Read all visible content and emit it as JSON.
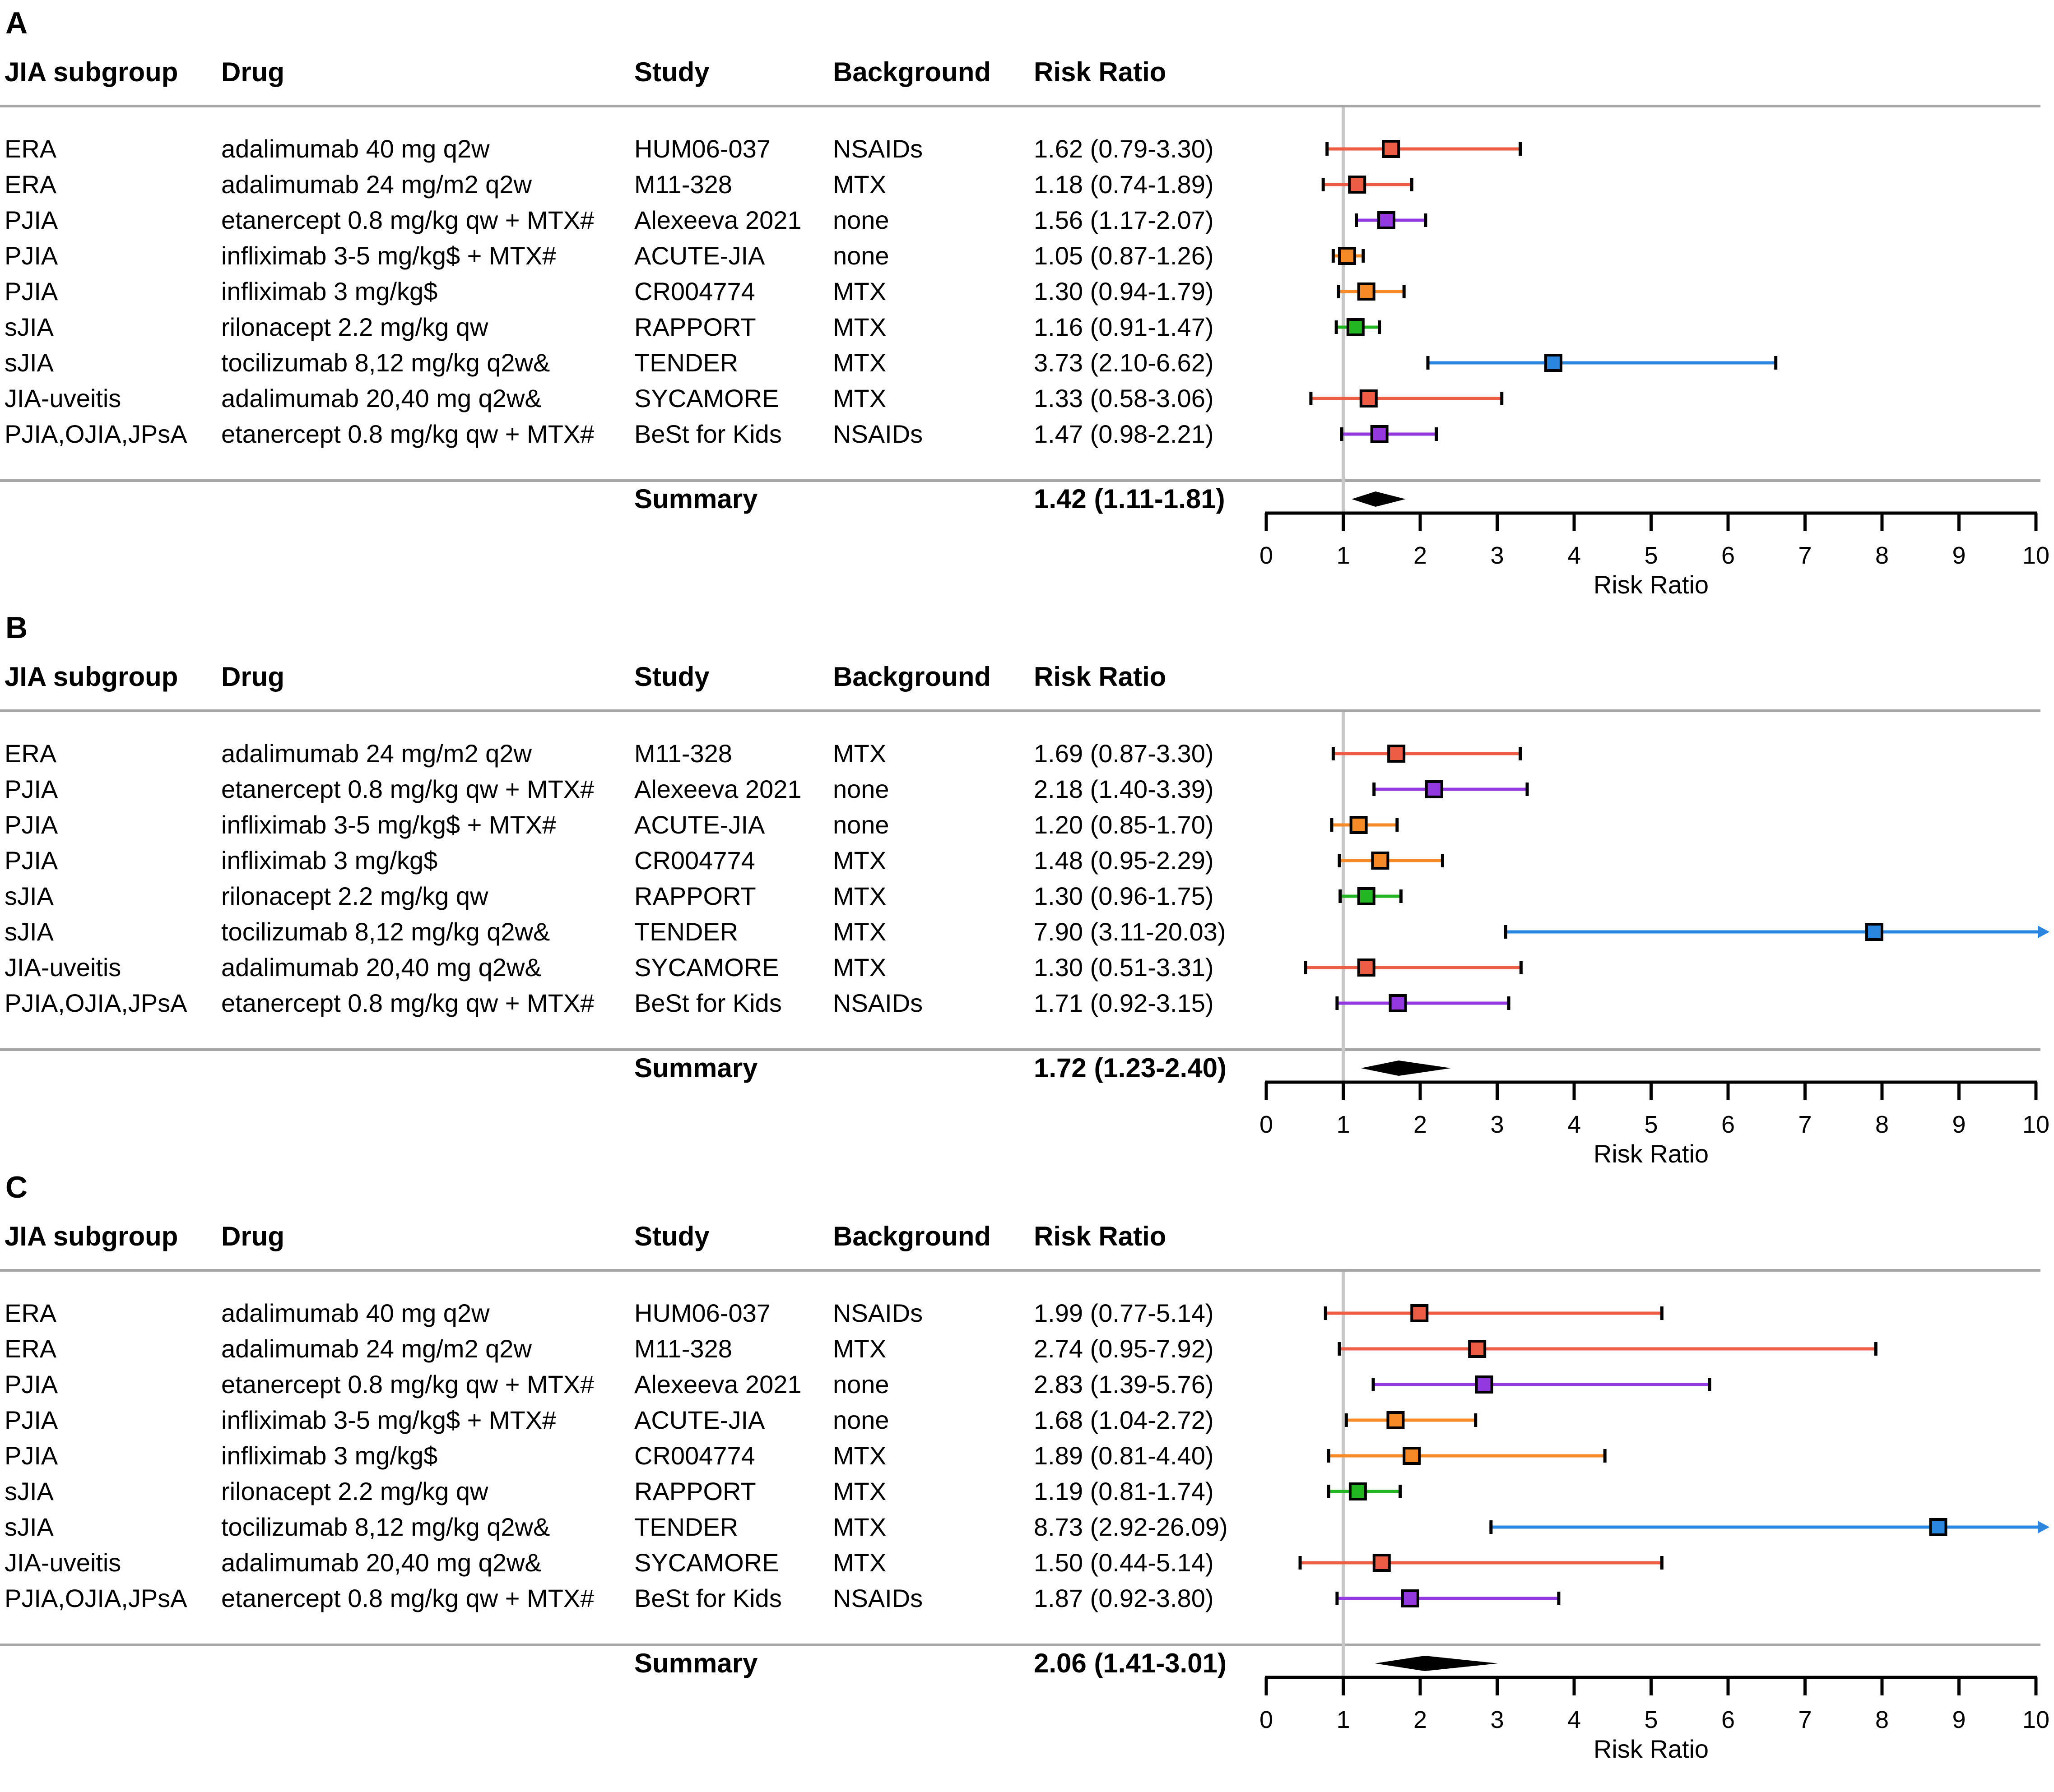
{
  "columns": {
    "subgroup": "JIA subgroup",
    "drug": "Drug",
    "study": "Study",
    "background": "Background",
    "rr": "Risk Ratio"
  },
  "summary_label": "Summary",
  "series_colors": {
    "adalimumab": "#ed5d45",
    "etanercept": "#9438e0",
    "infliximab": "#f58a27",
    "rilonacept": "#22b722",
    "tocilizumab": "#2b86e0"
  },
  "chart_data": [
    {
      "panel": "A",
      "type": "forest",
      "xlabel": "Risk Ratio",
      "xlim": [
        0,
        10
      ],
      "xticks": [
        "0",
        "1",
        "2",
        "3",
        "4",
        "5",
        "6",
        "7",
        "8",
        "9",
        "10"
      ],
      "reference_line": 1,
      "summary": {
        "label": "Summary",
        "text": "1.42 (1.11-1.81)",
        "estimate": 1.42,
        "lower": 1.11,
        "upper": 1.81
      },
      "rows": [
        {
          "subgroup": "ERA",
          "drug": "adalimumab 40 mg q2w",
          "study": "HUM06-037",
          "background": "NSAIDs",
          "rr_text": "1.62 (0.79-3.30)",
          "estimate": 1.62,
          "lower": 0.79,
          "upper": 3.3,
          "series": "adalimumab"
        },
        {
          "subgroup": "ERA",
          "drug": "adalimumab 24 mg/m2 q2w",
          "study": "M11-328",
          "background": "MTX",
          "rr_text": "1.18 (0.74-1.89)",
          "estimate": 1.18,
          "lower": 0.74,
          "upper": 1.89,
          "series": "adalimumab"
        },
        {
          "subgroup": "PJIA",
          "drug": "etanercept 0.8 mg/kg qw + MTX#",
          "study": "Alexeeva 2021",
          "background": "none",
          "rr_text": "1.56 (1.17-2.07)",
          "estimate": 1.56,
          "lower": 1.17,
          "upper": 2.07,
          "series": "etanercept"
        },
        {
          "subgroup": "PJIA",
          "drug": "infliximab 3-5 mg/kg$ + MTX#",
          "study": "ACUTE-JIA",
          "background": "none",
          "rr_text": "1.05 (0.87-1.26)",
          "estimate": 1.05,
          "lower": 0.87,
          "upper": 1.26,
          "series": "infliximab"
        },
        {
          "subgroup": "PJIA",
          "drug": "infliximab 3 mg/kg$",
          "study": "CR004774",
          "background": "MTX",
          "rr_text": "1.30 (0.94-1.79)",
          "estimate": 1.3,
          "lower": 0.94,
          "upper": 1.79,
          "series": "infliximab"
        },
        {
          "subgroup": "sJIA",
          "drug": "rilonacept 2.2 mg/kg qw",
          "study": "RAPPORT",
          "background": "MTX",
          "rr_text": "1.16 (0.91-1.47)",
          "estimate": 1.16,
          "lower": 0.91,
          "upper": 1.47,
          "series": "rilonacept"
        },
        {
          "subgroup": "sJIA",
          "drug": "tocilizumab 8,12 mg/kg q2w&",
          "study": "TENDER",
          "background": "MTX",
          "rr_text": "3.73 (2.10-6.62)",
          "estimate": 3.73,
          "lower": 2.1,
          "upper": 6.62,
          "series": "tocilizumab"
        },
        {
          "subgroup": "JIA-uveitis",
          "drug": "adalimumab 20,40 mg q2w&",
          "study": "SYCAMORE",
          "background": "MTX",
          "rr_text": "1.33 (0.58-3.06)",
          "estimate": 1.33,
          "lower": 0.58,
          "upper": 3.06,
          "series": "adalimumab"
        },
        {
          "subgroup": "PJIA,OJIA,JPsA",
          "drug": "etanercept 0.8 mg/kg qw + MTX#",
          "study": "BeSt for Kids",
          "background": "NSAIDs",
          "rr_text": "1.47 (0.98-2.21)",
          "estimate": 1.47,
          "lower": 0.98,
          "upper": 2.21,
          "series": "etanercept"
        }
      ]
    },
    {
      "panel": "B",
      "type": "forest",
      "xlabel": "Risk Ratio",
      "xlim": [
        0,
        10
      ],
      "xticks": [
        "0",
        "1",
        "2",
        "3",
        "4",
        "5",
        "6",
        "7",
        "8",
        "9",
        "10"
      ],
      "reference_line": 1,
      "summary": {
        "label": "Summary",
        "text": "1.72 (1.23-2.40)",
        "estimate": 1.72,
        "lower": 1.23,
        "upper": 2.4
      },
      "rows": [
        {
          "subgroup": "ERA",
          "drug": "adalimumab 24 mg/m2 q2w",
          "study": "M11-328",
          "background": "MTX",
          "rr_text": "1.69 (0.87-3.30)",
          "estimate": 1.69,
          "lower": 0.87,
          "upper": 3.3,
          "series": "adalimumab"
        },
        {
          "subgroup": "PJIA",
          "drug": "etanercept 0.8 mg/kg qw + MTX#",
          "study": "Alexeeva 2021",
          "background": "none",
          "rr_text": "2.18 (1.40-3.39)",
          "estimate": 2.18,
          "lower": 1.4,
          "upper": 3.39,
          "series": "etanercept"
        },
        {
          "subgroup": "PJIA",
          "drug": "infliximab 3-5 mg/kg$ + MTX#",
          "study": "ACUTE-JIA",
          "background": "none",
          "rr_text": "1.20 (0.85-1.70)",
          "estimate": 1.2,
          "lower": 0.85,
          "upper": 1.7,
          "series": "infliximab"
        },
        {
          "subgroup": "PJIA",
          "drug": "infliximab 3 mg/kg$",
          "study": "CR004774",
          "background": "MTX",
          "rr_text": "1.48 (0.95-2.29)",
          "estimate": 1.48,
          "lower": 0.95,
          "upper": 2.29,
          "series": "infliximab"
        },
        {
          "subgroup": "sJIA",
          "drug": "rilonacept 2.2 mg/kg qw",
          "study": "RAPPORT",
          "background": "MTX",
          "rr_text": "1.30 (0.96-1.75)",
          "estimate": 1.3,
          "lower": 0.96,
          "upper": 1.75,
          "series": "rilonacept"
        },
        {
          "subgroup": "sJIA",
          "drug": "tocilizumab 8,12 mg/kg q2w&",
          "study": "TENDER",
          "background": "MTX",
          "rr_text": "7.90 (3.11-20.03)",
          "estimate": 7.9,
          "lower": 3.11,
          "upper": 20.03,
          "series": "tocilizumab"
        },
        {
          "subgroup": "JIA-uveitis",
          "drug": "adalimumab 20,40 mg q2w&",
          "study": "SYCAMORE",
          "background": "MTX",
          "rr_text": "1.30 (0.51-3.31)",
          "estimate": 1.3,
          "lower": 0.51,
          "upper": 3.31,
          "series": "adalimumab"
        },
        {
          "subgroup": "PJIA,OJIA,JPsA",
          "drug": "etanercept 0.8 mg/kg qw + MTX#",
          "study": "BeSt for Kids",
          "background": "NSAIDs",
          "rr_text": "1.71 (0.92-3.15)",
          "estimate": 1.71,
          "lower": 0.92,
          "upper": 3.15,
          "series": "etanercept"
        }
      ]
    },
    {
      "panel": "C",
      "type": "forest",
      "xlabel": "Risk Ratio",
      "xlim": [
        0,
        10
      ],
      "xticks": [
        "0",
        "1",
        "2",
        "3",
        "4",
        "5",
        "6",
        "7",
        "8",
        "9",
        "10"
      ],
      "reference_line": 1,
      "summary": {
        "label": "Summary",
        "text": "2.06 (1.41-3.01)",
        "estimate": 2.06,
        "lower": 1.41,
        "upper": 3.01
      },
      "rows": [
        {
          "subgroup": "ERA",
          "drug": "adalimumab 40 mg q2w",
          "study": "HUM06-037",
          "background": "NSAIDs",
          "rr_text": "1.99 (0.77-5.14)",
          "estimate": 1.99,
          "lower": 0.77,
          "upper": 5.14,
          "series": "adalimumab"
        },
        {
          "subgroup": "ERA",
          "drug": "adalimumab 24 mg/m2 q2w",
          "study": "M11-328",
          "background": "MTX",
          "rr_text": "2.74 (0.95-7.92)",
          "estimate": 2.74,
          "lower": 0.95,
          "upper": 7.92,
          "series": "adalimumab"
        },
        {
          "subgroup": "PJIA",
          "drug": "etanercept 0.8 mg/kg qw + MTX#",
          "study": "Alexeeva 2021",
          "background": "none",
          "rr_text": "2.83 (1.39-5.76)",
          "estimate": 2.83,
          "lower": 1.39,
          "upper": 5.76,
          "series": "etanercept"
        },
        {
          "subgroup": "PJIA",
          "drug": "infliximab 3-5 mg/kg$ + MTX#",
          "study": "ACUTE-JIA",
          "background": "none",
          "rr_text": "1.68 (1.04-2.72)",
          "estimate": 1.68,
          "lower": 1.04,
          "upper": 2.72,
          "series": "infliximab"
        },
        {
          "subgroup": "PJIA",
          "drug": "infliximab 3 mg/kg$",
          "study": "CR004774",
          "background": "MTX",
          "rr_text": "1.89 (0.81-4.40)",
          "estimate": 1.89,
          "lower": 0.81,
          "upper": 4.4,
          "series": "infliximab"
        },
        {
          "subgroup": "sJIA",
          "drug": "rilonacept 2.2 mg/kg qw",
          "study": "RAPPORT",
          "background": "MTX",
          "rr_text": "1.19 (0.81-1.74)",
          "estimate": 1.19,
          "lower": 0.81,
          "upper": 1.74,
          "series": "rilonacept"
        },
        {
          "subgroup": "sJIA",
          "drug": "tocilizumab 8,12 mg/kg q2w&",
          "study": "TENDER",
          "background": "MTX",
          "rr_text": "8.73 (2.92-26.09)",
          "estimate": 8.73,
          "lower": 2.92,
          "upper": 26.09,
          "series": "tocilizumab"
        },
        {
          "subgroup": "JIA-uveitis",
          "drug": "adalimumab 20,40 mg q2w&",
          "study": "SYCAMORE",
          "background": "MTX",
          "rr_text": "1.50 (0.44-5.14)",
          "estimate": 1.5,
          "lower": 0.44,
          "upper": 5.14,
          "series": "adalimumab"
        },
        {
          "subgroup": "PJIA,OJIA,JPsA",
          "drug": "etanercept 0.8 mg/kg qw + MTX#",
          "study": "BeSt for Kids",
          "background": "NSAIDs",
          "rr_text": "1.87 (0.92-3.80)",
          "estimate": 1.87,
          "lower": 0.92,
          "upper": 3.8,
          "series": "etanercept"
        }
      ]
    }
  ]
}
